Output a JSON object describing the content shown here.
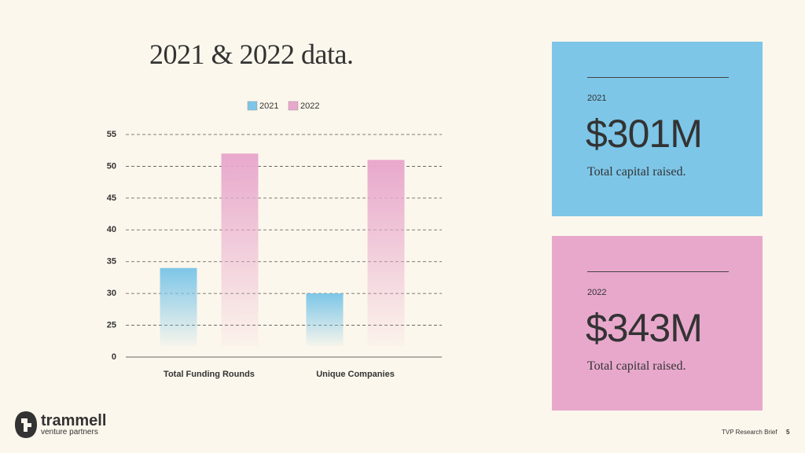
{
  "chart_data": {
    "type": "bar",
    "title": "2021 & 2022 data.",
    "categories": [
      "Total Funding Rounds",
      "Unique Companies"
    ],
    "series": [
      {
        "name": "2021",
        "color": "#7dc6e8",
        "values": [
          34,
          30
        ]
      },
      {
        "name": "2022",
        "color": "#e8a8cc",
        "values": [
          52,
          51
        ]
      }
    ],
    "ylim": [
      20,
      55
    ],
    "yticks": [
      {
        "value": 20,
        "label": "0"
      },
      25,
      30,
      35,
      40,
      45,
      50,
      55
    ],
    "grid": true,
    "legend": "top"
  },
  "cards": [
    {
      "year": "2021",
      "amount": "$301M",
      "caption": "Total capital raised.",
      "color": "#7dc6e8"
    },
    {
      "year": "2022",
      "amount": "$343M",
      "caption": "Total capital raised.",
      "color": "#e8a8cc"
    }
  ],
  "footer": {
    "logo_name": "trammell",
    "logo_sub": "venture partners",
    "brief": "TVP Research Brief",
    "page": "5"
  }
}
